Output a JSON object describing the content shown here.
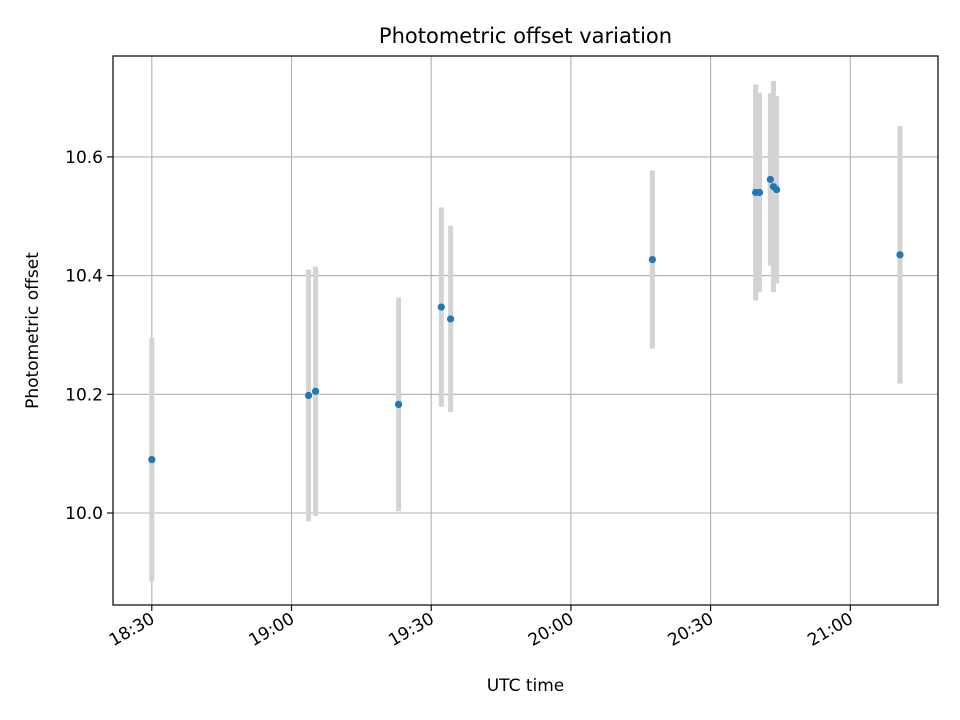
{
  "chart_data": {
    "type": "scatter",
    "title": "Photometric offset variation",
    "xlabel": "UTC time",
    "ylabel": "Photometric offset",
    "x_ticks": [
      "18:30",
      "19:00",
      "19:30",
      "20:00",
      "20:30",
      "21:00"
    ],
    "y_ticks": [
      "10.0",
      "10.2",
      "10.4",
      "10.6"
    ],
    "xlim": [
      "18:21:40",
      "21:18:50"
    ],
    "ylim": [
      9.845,
      10.77
    ],
    "grid": true,
    "colors": {
      "point": "#1f77b4",
      "errorbar": "#d3d3d3",
      "grid": "#b0b0b0"
    },
    "points": [
      {
        "x": "18:30:00",
        "y": 10.09,
        "err": 0.205
      },
      {
        "x": "19:03:40",
        "y": 10.198,
        "err": 0.212
      },
      {
        "x": "19:05:10",
        "y": 10.205,
        "err": 0.21
      },
      {
        "x": "19:23:00",
        "y": 10.183,
        "err": 0.18
      },
      {
        "x": "19:32:10",
        "y": 10.347,
        "err": 0.168
      },
      {
        "x": "19:34:10",
        "y": 10.327,
        "err": 0.157
      },
      {
        "x": "20:17:30",
        "y": 10.427,
        "err": 0.15
      },
      {
        "x": "20:39:40",
        "y": 10.54,
        "err": 0.182
      },
      {
        "x": "20:40:30",
        "y": 10.54,
        "err": 0.168
      },
      {
        "x": "20:42:50",
        "y": 10.562,
        "err": 0.145
      },
      {
        "x": "20:43:30",
        "y": 10.55,
        "err": 0.178
      },
      {
        "x": "20:44:10",
        "y": 10.545,
        "err": 0.158
      },
      {
        "x": "21:10:40",
        "y": 10.435,
        "err": 0.217
      }
    ]
  }
}
